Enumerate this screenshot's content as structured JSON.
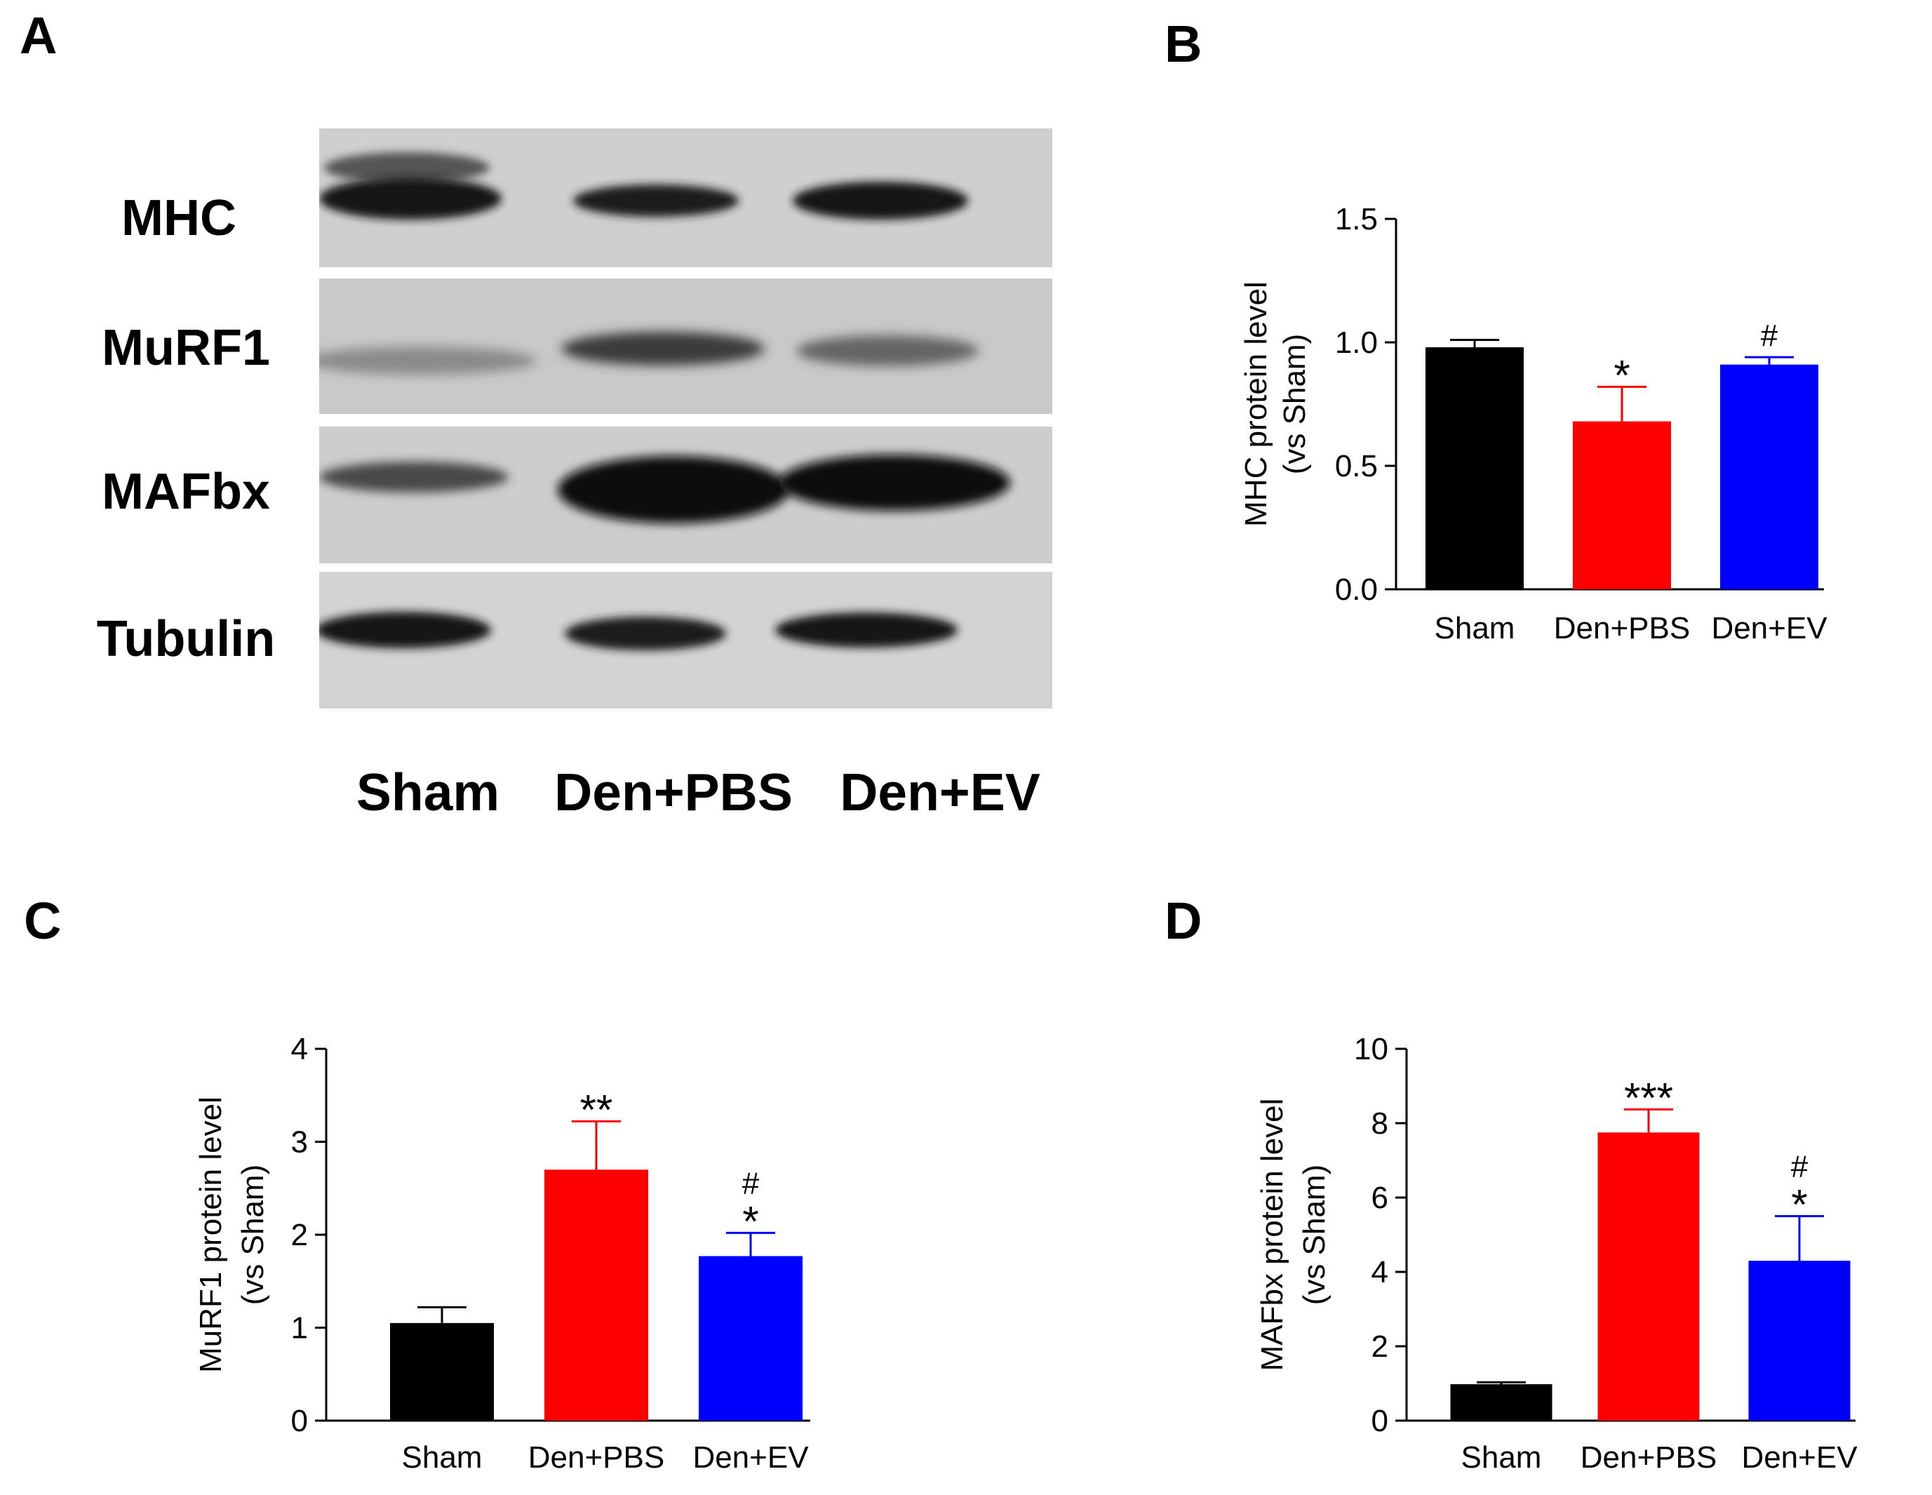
{
  "panels": {
    "A": "A",
    "B": "B",
    "C": "C",
    "D": "D"
  },
  "blot": {
    "rows": [
      "MHC",
      "MuRF1",
      "MAFbx",
      "Tubulin"
    ],
    "lanes": [
      "Sham",
      "Den+PBS",
      "Den+EV"
    ]
  },
  "colors": {
    "Sham": "#000000",
    "Den+PBS": "#ff0000",
    "Den+EV": "#0000ff"
  },
  "chart_data": [
    {
      "panel": "B",
      "type": "bar",
      "ylabel": [
        "MHC protein level",
        "(vs Sham)"
      ],
      "categories": [
        "Sham",
        "Den+PBS",
        "Den+EV"
      ],
      "values": [
        0.98,
        0.68,
        0.91
      ],
      "errors": [
        0.03,
        0.14,
        0.03
      ],
      "annotations": [
        [],
        [
          "*"
        ],
        [
          "#"
        ]
      ],
      "ylim": [
        0,
        1.5
      ],
      "yticks": [
        0,
        0.5,
        1.0,
        1.5
      ],
      "ytick_labels": [
        "0.0",
        "0.5",
        "1.0",
        "1.5"
      ]
    },
    {
      "panel": "C",
      "type": "bar",
      "ylabel": [
        "MuRF1 protein level",
        "(vs Sham)"
      ],
      "categories": [
        "Sham",
        "Den+PBS",
        "Den+EV"
      ],
      "values": [
        1.05,
        2.7,
        1.77
      ],
      "errors": [
        0.17,
        0.52,
        0.25
      ],
      "annotations": [
        [],
        [
          "**"
        ],
        [
          "*",
          "#"
        ]
      ],
      "ylim": [
        0,
        4
      ],
      "yticks": [
        0,
        1,
        2,
        3,
        4
      ],
      "ytick_labels": [
        "0",
        "1",
        "2",
        "3",
        "4"
      ]
    },
    {
      "panel": "D",
      "type": "bar",
      "ylabel": [
        "MAFbx protein level",
        "(vs Sham)"
      ],
      "categories": [
        "Sham",
        "Den+PBS",
        "Den+EV"
      ],
      "values": [
        0.98,
        7.75,
        4.3
      ],
      "errors": [
        0.05,
        0.62,
        1.2
      ],
      "annotations": [
        [],
        [
          "***"
        ],
        [
          "*",
          "#"
        ]
      ],
      "ylim": [
        0,
        10
      ],
      "yticks": [
        0,
        2,
        4,
        6,
        8,
        10
      ],
      "ytick_labels": [
        "0",
        "2",
        "4",
        "6",
        "8",
        "10"
      ]
    }
  ]
}
